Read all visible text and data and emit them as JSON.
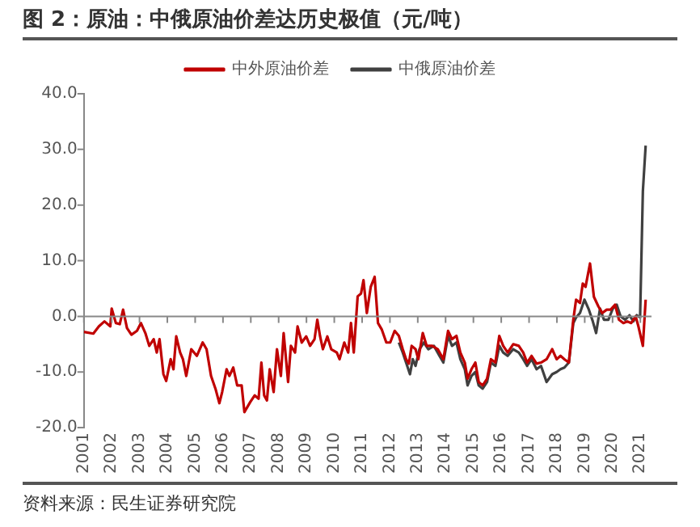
{
  "chart_data": {
    "type": "line",
    "title": "图 2：原油：中俄原油价差达历史极值（元/吨）",
    "annotations": [
      "资料来源：民生证券研究院"
    ],
    "xlim": [
      2001,
      2021.4
    ],
    "xticks": [
      2001,
      2002,
      2003,
      2004,
      2005,
      2006,
      2007,
      2008,
      2009,
      2010,
      2011,
      2012,
      2013,
      2014,
      2015,
      2016,
      2017,
      2018,
      2019,
      2020,
      2021
    ],
    "ylim": [
      -20,
      40
    ],
    "yticks": [
      {
        "value": -20,
        "label": "-20.0"
      },
      {
        "value": -10,
        "label": "-10.0"
      },
      {
        "value": 0,
        "label": "0.0"
      },
      {
        "value": 10,
        "label": "10.0"
      },
      {
        "value": 20,
        "label": "20.0"
      },
      {
        "value": 30,
        "label": "30.0"
      },
      {
        "value": 40,
        "label": "40.0"
      }
    ],
    "ref_lines": [
      {
        "axis": "y",
        "value": 0,
        "color": "#888888"
      }
    ],
    "grid": false,
    "legend": "top",
    "marker": "none",
    "line_style": "solid",
    "series": [
      {
        "name": "中外原油价差",
        "color": "#c00000",
        "x": [
          2001.0,
          2001.34,
          2001.54,
          2001.74,
          2001.95,
          2002.0,
          2002.15,
          2002.29,
          2002.41,
          2002.55,
          2002.71,
          2002.91,
          2003.05,
          2003.21,
          2003.35,
          2003.51,
          2003.62,
          2003.72,
          2003.86,
          2003.96,
          2004.12,
          2004.22,
          2004.32,
          2004.46,
          2004.56,
          2004.68,
          2004.86,
          2005.06,
          2005.27,
          2005.41,
          2005.57,
          2005.73,
          2005.87,
          2005.97,
          2006.13,
          2006.23,
          2006.37,
          2006.51,
          2006.67,
          2006.77,
          2006.98,
          2007.14,
          2007.28,
          2007.38,
          2007.48,
          2007.58,
          2007.68,
          2007.82,
          2007.94,
          2008.08,
          2008.18,
          2008.34,
          2008.44,
          2008.59,
          2008.68,
          2008.83,
          2008.99,
          2009.13,
          2009.29,
          2009.39,
          2009.49,
          2009.59,
          2009.75,
          2009.89,
          2010.09,
          2010.19,
          2010.36,
          2010.5,
          2010.6,
          2010.7,
          2010.84,
          2010.96,
          2011.05,
          2011.17,
          2011.31,
          2011.45,
          2011.57,
          2011.71,
          2011.87,
          2012.01,
          2012.17,
          2012.32,
          2012.46,
          2012.58,
          2012.68,
          2012.78,
          2012.92,
          2013.02,
          2013.18,
          2013.32,
          2013.52,
          2013.72,
          2013.92,
          2014.09,
          2014.23,
          2014.39,
          2014.53,
          2014.69,
          2014.79,
          2014.93,
          2015.07,
          2015.19,
          2015.33,
          2015.49,
          2015.63,
          2015.79,
          2015.93,
          2016.07,
          2016.23,
          2016.43,
          2016.63,
          2016.79,
          2016.93,
          2017.09,
          2017.27,
          2017.43,
          2017.63,
          2017.83,
          2017.99,
          2018.13,
          2018.27,
          2018.43,
          2018.59,
          2018.69,
          2018.83,
          2018.93,
          2019.03,
          2019.19,
          2019.33,
          2019.49,
          2019.63,
          2019.79,
          2019.93,
          2020.09,
          2020.23,
          2020.39,
          2020.53,
          2020.67,
          2020.83,
          2020.93,
          2021.09,
          2021.19
        ],
        "values": [
          -2.8,
          -3.1,
          -1.8,
          -0.9,
          -1.8,
          1.4,
          -1.2,
          -1.4,
          1.2,
          -2.1,
          -3.3,
          -2.6,
          -1.2,
          -3.0,
          -5.3,
          -4.1,
          -6.5,
          -4.1,
          -10.4,
          -11.6,
          -7.7,
          -9.5,
          -3.6,
          -6.5,
          -7.7,
          -10.7,
          -5.9,
          -7.1,
          -4.7,
          -5.9,
          -10.7,
          -13.0,
          -15.6,
          -13.6,
          -9.5,
          -10.7,
          -9.2,
          -12.4,
          -12.4,
          -17.2,
          -15.4,
          -14.2,
          -14.8,
          -8.3,
          -14.2,
          -15.1,
          -9.5,
          -13.6,
          -5.9,
          -10.7,
          -3.0,
          -11.8,
          -5.3,
          -6.5,
          -1.8,
          -4.7,
          -3.6,
          -5.3,
          -4.1,
          -0.6,
          -3.6,
          -5.9,
          -3.6,
          -5.9,
          -6.5,
          -7.7,
          -4.7,
          -6.5,
          -1.2,
          -6.5,
          3.6,
          4.1,
          6.5,
          0.6,
          5.3,
          7.1,
          -1.2,
          -2.4,
          -4.7,
          -4.7,
          -2.6,
          -3.5,
          -5.9,
          -7.7,
          -8.5,
          -5.3,
          -5.9,
          -7.7,
          -3.0,
          -5.3,
          -5.3,
          -5.9,
          -7.7,
          -2.6,
          -4.1,
          -3.5,
          -6.5,
          -8.3,
          -11.2,
          -9.5,
          -8.3,
          -11.8,
          -12.4,
          -11.2,
          -7.7,
          -8.3,
          -3.5,
          -5.3,
          -6.5,
          -5.0,
          -5.3,
          -6.5,
          -8.3,
          -7.1,
          -8.5,
          -8.3,
          -7.7,
          -5.9,
          -7.7,
          -7.1,
          -7.7,
          -8.3,
          -0.6,
          3.0,
          2.4,
          5.9,
          5.3,
          9.5,
          3.5,
          1.8,
          0.6,
          1.2,
          1.2,
          2.1,
          -0.6,
          -1.2,
          -0.9,
          -1.2,
          0.0,
          -1.8,
          -5.3,
          3.0
        ]
      },
      {
        "name": "中俄原油价差",
        "color": "#404040",
        "x": [
          2012.32,
          2012.46,
          2012.58,
          2012.72,
          2012.82,
          2012.92,
          2013.06,
          2013.22,
          2013.38,
          2013.58,
          2013.78,
          2013.92,
          2014.09,
          2014.23,
          2014.39,
          2014.53,
          2014.69,
          2014.79,
          2014.93,
          2015.07,
          2015.19,
          2015.33,
          2015.49,
          2015.63,
          2015.79,
          2015.93,
          2016.07,
          2016.23,
          2016.43,
          2016.63,
          2016.79,
          2016.93,
          2017.09,
          2017.27,
          2017.43,
          2017.63,
          2017.83,
          2017.99,
          2018.13,
          2018.27,
          2018.43,
          2018.59,
          2018.69,
          2018.83,
          2018.99,
          2019.15,
          2019.29,
          2019.41,
          2019.55,
          2019.69,
          2019.85,
          2020.01,
          2020.15,
          2020.29,
          2020.45,
          2020.61,
          2020.75,
          2020.87,
          2020.99,
          2021.09,
          2021.19
        ],
        "values": [
          -4.7,
          -6.5,
          -8.3,
          -10.4,
          -7.7,
          -8.9,
          -5.9,
          -4.7,
          -5.9,
          -5.3,
          -7.1,
          -8.3,
          -3.5,
          -5.3,
          -4.7,
          -7.7,
          -9.5,
          -12.4,
          -10.7,
          -10.0,
          -12.4,
          -13.0,
          -11.8,
          -8.3,
          -8.9,
          -5.3,
          -6.5,
          -7.1,
          -5.9,
          -6.5,
          -7.7,
          -8.9,
          -7.7,
          -9.5,
          -8.9,
          -11.8,
          -10.4,
          -10.0,
          -9.5,
          -9.2,
          -8.3,
          -1.2,
          -0.2,
          0.6,
          3.0,
          1.2,
          -0.9,
          -3.0,
          1.4,
          -0.6,
          -0.6,
          1.4,
          2.1,
          0.0,
          -0.6,
          0.2,
          -0.9,
          0.2,
          -0.2,
          22.5,
          30.7
        ]
      }
    ]
  }
}
